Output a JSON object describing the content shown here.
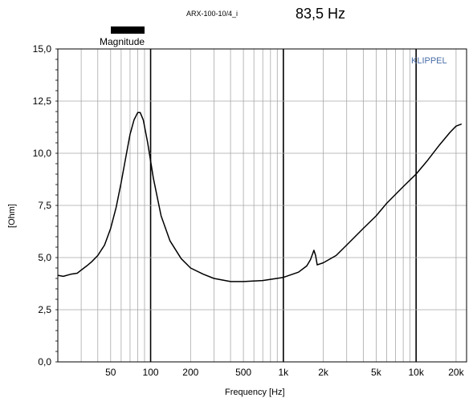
{
  "chart_data": {
    "type": "line",
    "title": "ARX-100-10/4_i",
    "subtitle": "83,5 Hz",
    "brand": "KLIPPEL",
    "legend": [
      "Magnitude"
    ],
    "xlabel": "Frequency [Hz]",
    "ylabel": "[Ohm]",
    "xscale": "log",
    "xlim": [
      20,
      24000
    ],
    "ylim": [
      0,
      15
    ],
    "xticks": [
      {
        "v": 50,
        "label": "50"
      },
      {
        "v": 100,
        "label": "100"
      },
      {
        "v": 200,
        "label": "200"
      },
      {
        "v": 500,
        "label": "500"
      },
      {
        "v": 1000,
        "label": "1k"
      },
      {
        "v": 2000,
        "label": "2k"
      },
      {
        "v": 5000,
        "label": "5k"
      },
      {
        "v": 10000,
        "label": "10k"
      },
      {
        "v": 20000,
        "label": "20k"
      }
    ],
    "yticks": [
      {
        "v": 0,
        "label": "0,0"
      },
      {
        "v": 2.5,
        "label": "2,5"
      },
      {
        "v": 5,
        "label": "5,0"
      },
      {
        "v": 7.5,
        "label": "7,5"
      },
      {
        "v": 10,
        "label": "10,0"
      },
      {
        "v": 12.5,
        "label": "12,5"
      },
      {
        "v": 15,
        "label": "15,0"
      }
    ],
    "grid": true,
    "series": [
      {
        "name": "Magnitude",
        "color": "#000000",
        "x": [
          20,
          22,
          25,
          28,
          30,
          33,
          36,
          40,
          45,
          50,
          55,
          60,
          65,
          70,
          75,
          80,
          83.5,
          88,
          95,
          105,
          120,
          140,
          170,
          200,
          250,
          300,
          400,
          500,
          700,
          1000,
          1300,
          1500,
          1600,
          1700,
          1750,
          1800,
          2000,
          2500,
          3000,
          4000,
          5000,
          6000,
          8000,
          10000,
          12000,
          15000,
          18000,
          20000,
          22000
        ],
        "y": [
          4.15,
          4.1,
          4.2,
          4.25,
          4.4,
          4.6,
          4.8,
          5.1,
          5.6,
          6.4,
          7.4,
          8.6,
          9.8,
          10.9,
          11.6,
          11.95,
          11.95,
          11.6,
          10.5,
          8.8,
          7.0,
          5.8,
          4.95,
          4.5,
          4.2,
          4.0,
          3.85,
          3.85,
          3.9,
          4.05,
          4.3,
          4.6,
          4.9,
          5.35,
          5.1,
          4.65,
          4.75,
          5.1,
          5.6,
          6.4,
          7.0,
          7.6,
          8.4,
          9.0,
          9.6,
          10.4,
          11.0,
          11.3,
          11.4
        ]
      }
    ]
  }
}
